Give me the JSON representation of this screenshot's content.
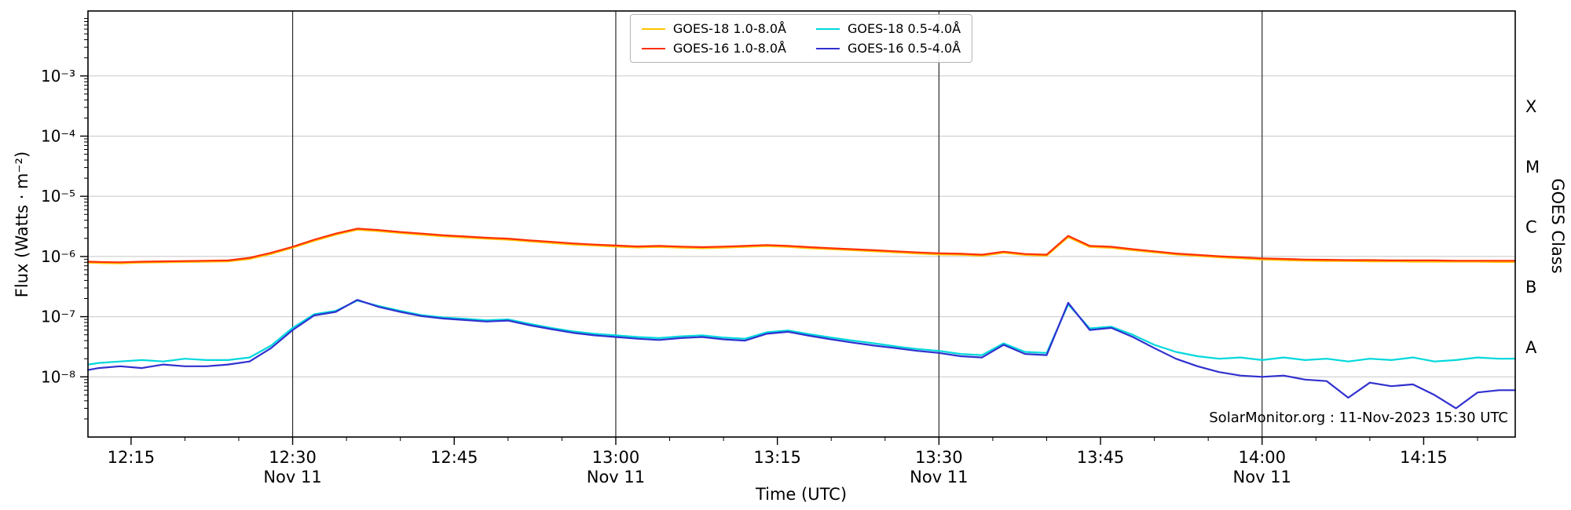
{
  "chart_data": {
    "type": "line",
    "title": "",
    "xlabel": "Time (UTC)",
    "ylabel": "Flux (Watts · m⁻²)",
    "annotation": "SolarMonitor.org : 11-Nov-2023 15:30 UTC",
    "x_unit": "minutes after 12:00 UTC on 11-Nov-2023",
    "xlim": [
      11,
      143.5
    ],
    "ylim": [
      1e-09,
      0.012
    ],
    "grid": "horizontal decades + vertical date lines",
    "legend_position": "top center",
    "x_minor_tick_minutes": 5,
    "x_ticks": [
      {
        "t": 15,
        "label": "12:15",
        "sub": ""
      },
      {
        "t": 30,
        "label": "12:30",
        "sub": "Nov 11"
      },
      {
        "t": 45,
        "label": "12:45",
        "sub": ""
      },
      {
        "t": 60,
        "label": "13:00",
        "sub": "Nov 11"
      },
      {
        "t": 75,
        "label": "13:15",
        "sub": ""
      },
      {
        "t": 90,
        "label": "13:30",
        "sub": "Nov 11"
      },
      {
        "t": 105,
        "label": "13:45",
        "sub": ""
      },
      {
        "t": 120,
        "label": "14:00",
        "sub": "Nov 11"
      },
      {
        "t": 135,
        "label": "14:15",
        "sub": ""
      }
    ],
    "x_gridlines": [
      30,
      60,
      90,
      120
    ],
    "y_ticks": [
      {
        "exp": -3,
        "label": "10⁻³"
      },
      {
        "exp": -4,
        "label": "10⁻⁴"
      },
      {
        "exp": -5,
        "label": "10⁻⁵"
      },
      {
        "exp": -6,
        "label": "10⁻⁶"
      },
      {
        "exp": -7,
        "label": "10⁻⁷"
      },
      {
        "exp": -8,
        "label": "10⁻⁸"
      }
    ],
    "right_axis": {
      "label": "GOES Class",
      "classes": [
        {
          "label": "X",
          "log_center": -3.5
        },
        {
          "label": "M",
          "log_center": -4.5
        },
        {
          "label": "C",
          "log_center": -5.5
        },
        {
          "label": "B",
          "log_center": -6.5
        },
        {
          "label": "A",
          "log_center": -7.5
        }
      ]
    },
    "legend": [
      {
        "label": "GOES-18 1.0-8.0Å",
        "color": "#ffc400"
      },
      {
        "label": "GOES-16 1.0-8.0Å",
        "color": "#ff3000"
      },
      {
        "label": "GOES-18 0.5-4.0Å",
        "color": "#00d8dc"
      },
      {
        "label": "GOES-16 0.5-4.0Å",
        "color": "#3030cf"
      }
    ],
    "style": {
      "grid_color": "#c8c8c8",
      "vline_color": "#2a2a2a",
      "border_color": "#000000",
      "background": "#ffffff"
    },
    "x": [
      11,
      12,
      14,
      16,
      18,
      20,
      22,
      24,
      26,
      28,
      30,
      32,
      34,
      36,
      38,
      40,
      42,
      44,
      46,
      48,
      50,
      52,
      54,
      56,
      58,
      60,
      62,
      64,
      66,
      68,
      70,
      72,
      74,
      76,
      78,
      80,
      82,
      84,
      86,
      88,
      90,
      92,
      94,
      96,
      98,
      100,
      102,
      104,
      106,
      108,
      110,
      112,
      114,
      116,
      118,
      120,
      122,
      124,
      126,
      128,
      130,
      132,
      134,
      136,
      138,
      140,
      142,
      143.5
    ],
    "series": [
      {
        "name": "GOES-18 1.0-8.0Å",
        "color": "#ffc400",
        "values": [
          7.9e-07,
          7.8e-07,
          7.7e-07,
          7.9e-07,
          8e-07,
          8.1e-07,
          8.2e-07,
          8.3e-07,
          9.1e-07,
          1.1e-06,
          1.4e-06,
          1.82e-06,
          2.3e-06,
          2.78e-06,
          2.64e-06,
          2.45e-06,
          2.3e-06,
          2.16e-06,
          2.06e-06,
          1.97e-06,
          1.9e-06,
          1.78e-06,
          1.68e-06,
          1.58e-06,
          1.52e-06,
          1.46e-06,
          1.41e-06,
          1.44e-06,
          1.4e-06,
          1.37e-06,
          1.4e-06,
          1.44e-06,
          1.49e-06,
          1.44e-06,
          1.37e-06,
          1.32e-06,
          1.27e-06,
          1.22e-06,
          1.17e-06,
          1.12e-06,
          1.08e-06,
          1.07e-06,
          1.03e-06,
          1.15e-06,
          1.06e-06,
          1.03e-06,
          2.1e-06,
          1.44e-06,
          1.39e-06,
          1.27e-06,
          1.17e-06,
          1.08e-06,
          1.02e-06,
          9.7e-07,
          9.3e-07,
          8.9e-07,
          8.7e-07,
          8.5e-07,
          8.4e-07,
          8.4e-07,
          8.3e-07,
          8.3e-07,
          8.2e-07,
          8.2e-07,
          8.2e-07,
          8.2e-07,
          8.1e-07,
          8.1e-07
        ]
      },
      {
        "name": "GOES-16 1.0-8.0Å",
        "color": "#ff3000",
        "values": [
          8.2e-07,
          8.1e-07,
          8e-07,
          8.2e-07,
          8.3e-07,
          8.4e-07,
          8.5e-07,
          8.6e-07,
          9.5e-07,
          1.15e-06,
          1.45e-06,
          1.9e-06,
          2.4e-06,
          2.9e-06,
          2.75e-06,
          2.55e-06,
          2.4e-06,
          2.25e-06,
          2.15e-06,
          2.05e-06,
          1.98e-06,
          1.85e-06,
          1.75e-06,
          1.65e-06,
          1.58e-06,
          1.52e-06,
          1.47e-06,
          1.5e-06,
          1.46e-06,
          1.43e-06,
          1.46e-06,
          1.5e-06,
          1.55e-06,
          1.5e-06,
          1.43e-06,
          1.37e-06,
          1.32e-06,
          1.27e-06,
          1.22e-06,
          1.17e-06,
          1.13e-06,
          1.11e-06,
          1.07e-06,
          1.2e-06,
          1.1e-06,
          1.07e-06,
          2.2e-06,
          1.5e-06,
          1.45e-06,
          1.32e-06,
          1.22e-06,
          1.12e-06,
          1.06e-06,
          1.01e-06,
          9.7e-07,
          9.3e-07,
          9.1e-07,
          8.9e-07,
          8.8e-07,
          8.7e-07,
          8.7e-07,
          8.6e-07,
          8.6e-07,
          8.6e-07,
          8.5e-07,
          8.5e-07,
          8.5e-07,
          8.5e-07
        ]
      },
      {
        "name": "GOES-18 0.5-4.0Å",
        "color": "#00d8dc",
        "values": [
          1.6e-08,
          1.7e-08,
          1.8e-08,
          1.9e-08,
          1.8e-08,
          2e-08,
          1.9e-08,
          1.9e-08,
          2.1e-08,
          3.3e-08,
          6.5e-08,
          1.1e-07,
          1.25e-07,
          1.85e-07,
          1.5e-07,
          1.25e-07,
          1.06e-07,
          9.7e-08,
          9.2e-08,
          8.7e-08,
          9e-08,
          7.6e-08,
          6.5e-08,
          5.7e-08,
          5.2e-08,
          4.9e-08,
          4.6e-08,
          4.4e-08,
          4.7e-08,
          4.9e-08,
          4.5e-08,
          4.3e-08,
          5.5e-08,
          5.9e-08,
          5.1e-08,
          4.5e-08,
          4e-08,
          3.6e-08,
          3.2e-08,
          2.9e-08,
          2.7e-08,
          2.4e-08,
          2.3e-08,
          3.6e-08,
          2.6e-08,
          2.5e-08,
          1.6e-07,
          6.4e-08,
          6.8e-08,
          5e-08,
          3.4e-08,
          2.6e-08,
          2.2e-08,
          2e-08,
          2.1e-08,
          1.9e-08,
          2.1e-08,
          1.9e-08,
          2e-08,
          1.8e-08,
          2e-08,
          1.9e-08,
          2.1e-08,
          1.8e-08,
          1.9e-08,
          2.1e-08,
          2e-08,
          2e-08
        ]
      },
      {
        "name": "GOES-16 0.5-4.0Å",
        "color": "#3030cf",
        "values": [
          1.3e-08,
          1.4e-08,
          1.5e-08,
          1.4e-08,
          1.6e-08,
          1.5e-08,
          1.5e-08,
          1.6e-08,
          1.8e-08,
          3e-08,
          6e-08,
          1.05e-07,
          1.2e-07,
          1.9e-07,
          1.45e-07,
          1.2e-07,
          1.02e-07,
          9.3e-08,
          8.8e-08,
          8.3e-08,
          8.6e-08,
          7.2e-08,
          6.2e-08,
          5.4e-08,
          4.9e-08,
          4.6e-08,
          4.3e-08,
          4.1e-08,
          4.4e-08,
          4.6e-08,
          4.2e-08,
          4e-08,
          5.2e-08,
          5.6e-08,
          4.8e-08,
          4.2e-08,
          3.7e-08,
          3.3e-08,
          3e-08,
          2.7e-08,
          2.5e-08,
          2.2e-08,
          2.1e-08,
          3.4e-08,
          2.4e-08,
          2.3e-08,
          1.7e-07,
          6e-08,
          6.5e-08,
          4.6e-08,
          3e-08,
          2e-08,
          1.5e-08,
          1.2e-08,
          1.05e-08,
          1e-08,
          1.05e-08,
          9e-09,
          8.5e-09,
          4.5e-09,
          8e-09,
          7e-09,
          7.5e-09,
          5e-09,
          3e-09,
          5.5e-09,
          6e-09,
          6e-09
        ]
      }
    ]
  }
}
